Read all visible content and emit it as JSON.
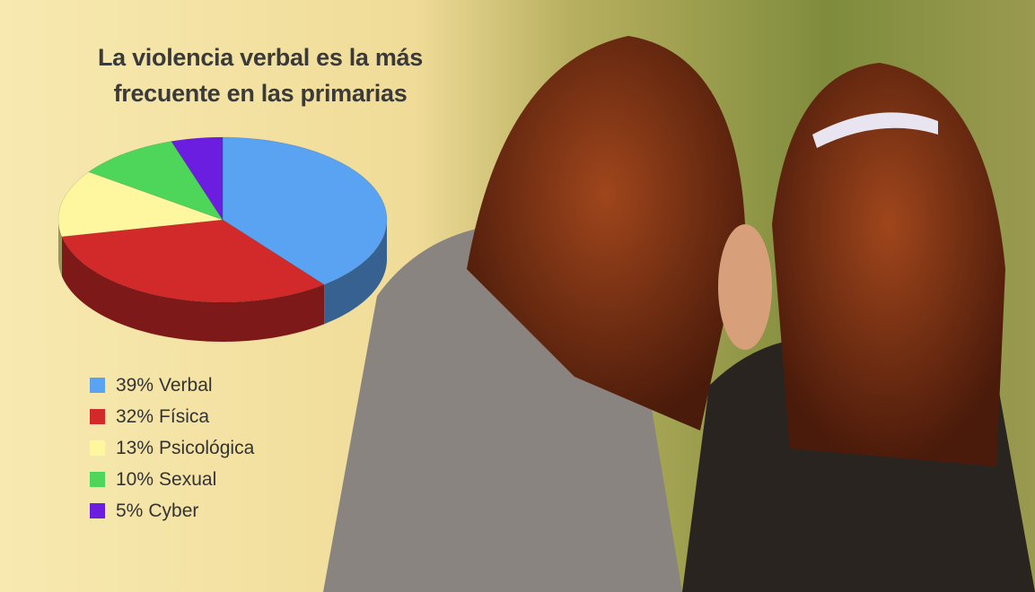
{
  "chart_data": {
    "type": "pie",
    "title": "La violencia verbal es la más frecuente en las primarias",
    "categories": [
      "Verbal",
      "Física",
      "Psicológica",
      "Sexual",
      "Cyber"
    ],
    "values": [
      39,
      32,
      13,
      10,
      5
    ],
    "value_labels": [
      "39%",
      "32%",
      "13%",
      "10%",
      "5%"
    ],
    "colors": [
      "#5aa2f2",
      "#d22a2a",
      "#fff6a0",
      "#4dd65a",
      "#6b1ee0"
    ]
  }
}
